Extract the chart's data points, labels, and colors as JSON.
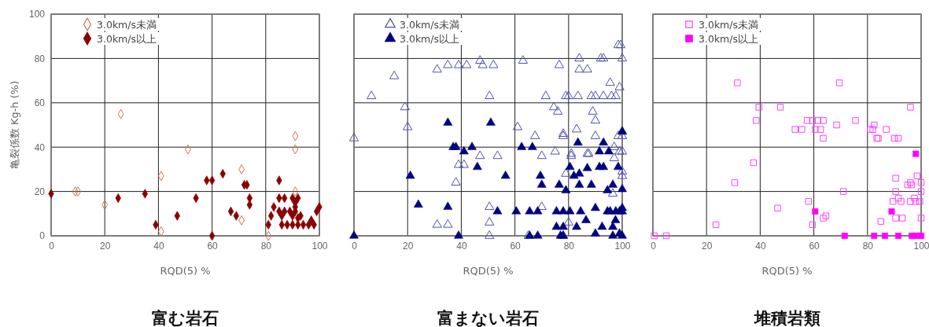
{
  "chart_data": [
    {
      "type": "scatter",
      "title": "富む岩石",
      "xlabel": "RQD(5) %",
      "ylabel": "亀裂係数 Kg-h (%)",
      "xlim": [
        0,
        100
      ],
      "ylim": [
        0,
        100
      ],
      "xticks": [
        0,
        20,
        40,
        60,
        80,
        100
      ],
      "yticks": [
        0,
        20,
        40,
        60,
        80,
        100
      ],
      "grid": true,
      "legend": "top left",
      "series": [
        {
          "name": "3.0km/s未満",
          "color": "#c8764f",
          "marker": "diamond",
          "x": [
            20,
            9,
            10,
            26,
            41,
            41,
            51,
            71,
            71,
            81,
            91,
            91,
            91
          ],
          "values": [
            14,
            20,
            20,
            55,
            27,
            2,
            39,
            30,
            7,
            0,
            45,
            39,
            20
          ]
        },
        {
          "name": "3.0km/s以上",
          "color": "#8b0000",
          "marker": "diamond",
          "x": [
            0,
            25,
            35,
            39,
            47,
            54,
            58,
            60,
            60,
            64,
            67,
            69,
            72,
            73,
            74,
            74,
            81,
            82,
            85,
            83,
            85,
            87,
            90,
            92,
            85,
            87,
            89,
            91,
            86,
            90,
            92,
            93,
            97,
            99,
            100,
            86,
            88,
            90,
            92,
            94,
            96,
            98,
            91,
            91
          ],
          "values": [
            19,
            17,
            19,
            5,
            9,
            17,
            25,
            25,
            0,
            28,
            11,
            9,
            23,
            23,
            17,
            14,
            5,
            9,
            25,
            13,
            17,
            17,
            17,
            17,
            11,
            11,
            11,
            11,
            9,
            9,
            8,
            9,
            7,
            11,
            13,
            5,
            5,
            5,
            5,
            5,
            5,
            5,
            13,
            15
          ]
        }
      ]
    },
    {
      "type": "scatter",
      "title": "富まない岩石",
      "xlabel": "RQD(5) %",
      "xlim": [
        0,
        100
      ],
      "ylim": [
        0,
        100
      ],
      "xticks": [
        0,
        20,
        40,
        60,
        80,
        100
      ],
      "yticks": [
        0,
        20,
        40,
        60,
        80,
        100
      ],
      "tick_labels": "x",
      "grid": true,
      "legend": "top left",
      "series": [
        {
          "name": "3.0km/s未満",
          "color": "#5050b0",
          "marker": "triangle",
          "x": [
            0,
            6.5,
            15,
            19,
            20,
            31,
            35,
            39,
            42,
            47,
            48,
            47,
            39,
            41,
            38,
            31,
            35,
            52,
            63,
            76.5,
            84,
            92,
            93,
            100,
            98.5,
            99.4,
            84,
            87,
            95.5,
            99,
            50.5,
            71.5,
            79,
            80,
            83.5,
            88.5,
            90,
            93,
            96,
            97.6,
            74.5,
            76,
            89,
            90,
            61,
            67.5,
            78,
            78,
            83,
            90,
            98.5,
            100,
            100,
            53.5,
            70,
            75,
            81,
            81,
            87,
            87.5,
            97,
            97,
            99,
            100,
            79,
            100,
            100,
            96.5,
            50.5,
            70,
            50.5,
            80,
            50.5,
            65,
            78
          ],
          "values": [
            44,
            63,
            72,
            58,
            49,
            75,
            77,
            77,
            77,
            79,
            77,
            36,
            32,
            32,
            24,
            5,
            5,
            77,
            79,
            77,
            80,
            80,
            80,
            80,
            86,
            86,
            75,
            75,
            69,
            67,
            63,
            63,
            63,
            63,
            63,
            63,
            63,
            63,
            63,
            63,
            58,
            56,
            56,
            52,
            49,
            45,
            46,
            45,
            48,
            45,
            45,
            47,
            45,
            36,
            36,
            38,
            37,
            36,
            37,
            37,
            40,
            35,
            38,
            38,
            28,
            29,
            27,
            19,
            13,
            13,
            6,
            6,
            0,
            0,
            0
          ]
        },
        {
          "name": "3.0km/s以上",
          "color": "#000080",
          "marker": "triangle",
          "x": [
            35,
            37,
            38,
            41,
            44,
            46,
            21,
            24,
            35,
            0,
            39,
            51,
            62.5,
            66.5,
            83.5,
            93,
            91.5,
            95,
            100,
            56.5,
            69.5,
            70,
            76.5,
            79,
            80.5,
            82,
            84,
            87,
            91.5,
            93,
            98.5,
            84,
            88.5,
            96.5,
            94.5,
            100,
            53.5,
            60.5,
            65.5,
            68.5,
            75.5,
            78,
            80.5,
            84.5,
            94.5,
            95.5,
            97.6,
            99,
            100,
            90,
            100,
            86.5,
            75.5,
            78,
            83,
            92.5,
            96.5,
            97.5,
            65.5,
            68.5,
            77,
            78,
            90,
            96.5,
            99,
            100
          ],
          "values": [
            51,
            40,
            40,
            38,
            40,
            31,
            27,
            14,
            13,
            0,
            0,
            51,
            40,
            40,
            42,
            42,
            38,
            38,
            47,
            27,
            27,
            23,
            23,
            20.5,
            31,
            27,
            28,
            30.5,
            31,
            31,
            31,
            23,
            23,
            23,
            20.5,
            21,
            11,
            11,
            11,
            11,
            11,
            11,
            11,
            11,
            11,
            11,
            11,
            11,
            11,
            12.5,
            12.5,
            7,
            4,
            4,
            4,
            4,
            4,
            7,
            0,
            0,
            0,
            0,
            1,
            0,
            1,
            0
          ]
        }
      ]
    },
    {
      "type": "scatter",
      "title": "堆積岩類",
      "xlabel": "RQD(5) %",
      "xlim": [
        0,
        100
      ],
      "ylim": [
        0,
        100
      ],
      "xticks": [
        0,
        20,
        40,
        60,
        80,
        100
      ],
      "yticks": [
        0,
        20,
        40,
        60,
        80,
        100
      ],
      "tick_labels": "x",
      "grid": true,
      "legend": "top left",
      "series": [
        {
          "name": "3.0km/s未満",
          "color": "#ff40ff",
          "marker": "square",
          "x": [
            0.5,
            5,
            23.5,
            30.5,
            31.5,
            37.5,
            38.5,
            39.5,
            46.5,
            47.5,
            53,
            55.5,
            57.5,
            59.5,
            61.5,
            63.5,
            60.5,
            62.5,
            63.5,
            58,
            59.5,
            63.5,
            64.5,
            68.5,
            69.5,
            71,
            75.5,
            81,
            82,
            82.5,
            83.5,
            84,
            87,
            90,
            91.5,
            96,
            90.5,
            90.5,
            91.5,
            89.5,
            92.5,
            95,
            96.5,
            96,
            98.5,
            100,
            100,
            97.5,
            96,
            98,
            99.5,
            90.5,
            93,
            100,
            85
          ],
          "values": [
            0,
            0,
            5,
            24,
            69,
            33,
            52,
            58,
            12.5,
            58,
            48,
            48,
            52,
            52,
            52,
            52,
            48,
            48,
            44,
            15.5,
            5,
            8,
            9,
            50,
            69,
            20,
            52,
            48,
            48,
            50,
            44,
            44,
            48,
            44,
            44,
            58,
            26,
            20,
            17,
            15.5,
            15.5,
            23,
            23,
            24,
            27,
            24,
            20,
            17,
            15.5,
            15.5,
            15.5,
            8,
            8,
            8,
            6.5
          ]
        },
        {
          "name": "3.0km/s以上",
          "color": "#ff00ff",
          "marker": "square",
          "x": [
            60.5,
            89,
            98,
            71.5,
            82.5,
            86.5,
            91.5,
            96.5,
            98,
            100
          ],
          "values": [
            11,
            11,
            37,
            0,
            0,
            0,
            0,
            0,
            0,
            0
          ]
        }
      ]
    }
  ]
}
